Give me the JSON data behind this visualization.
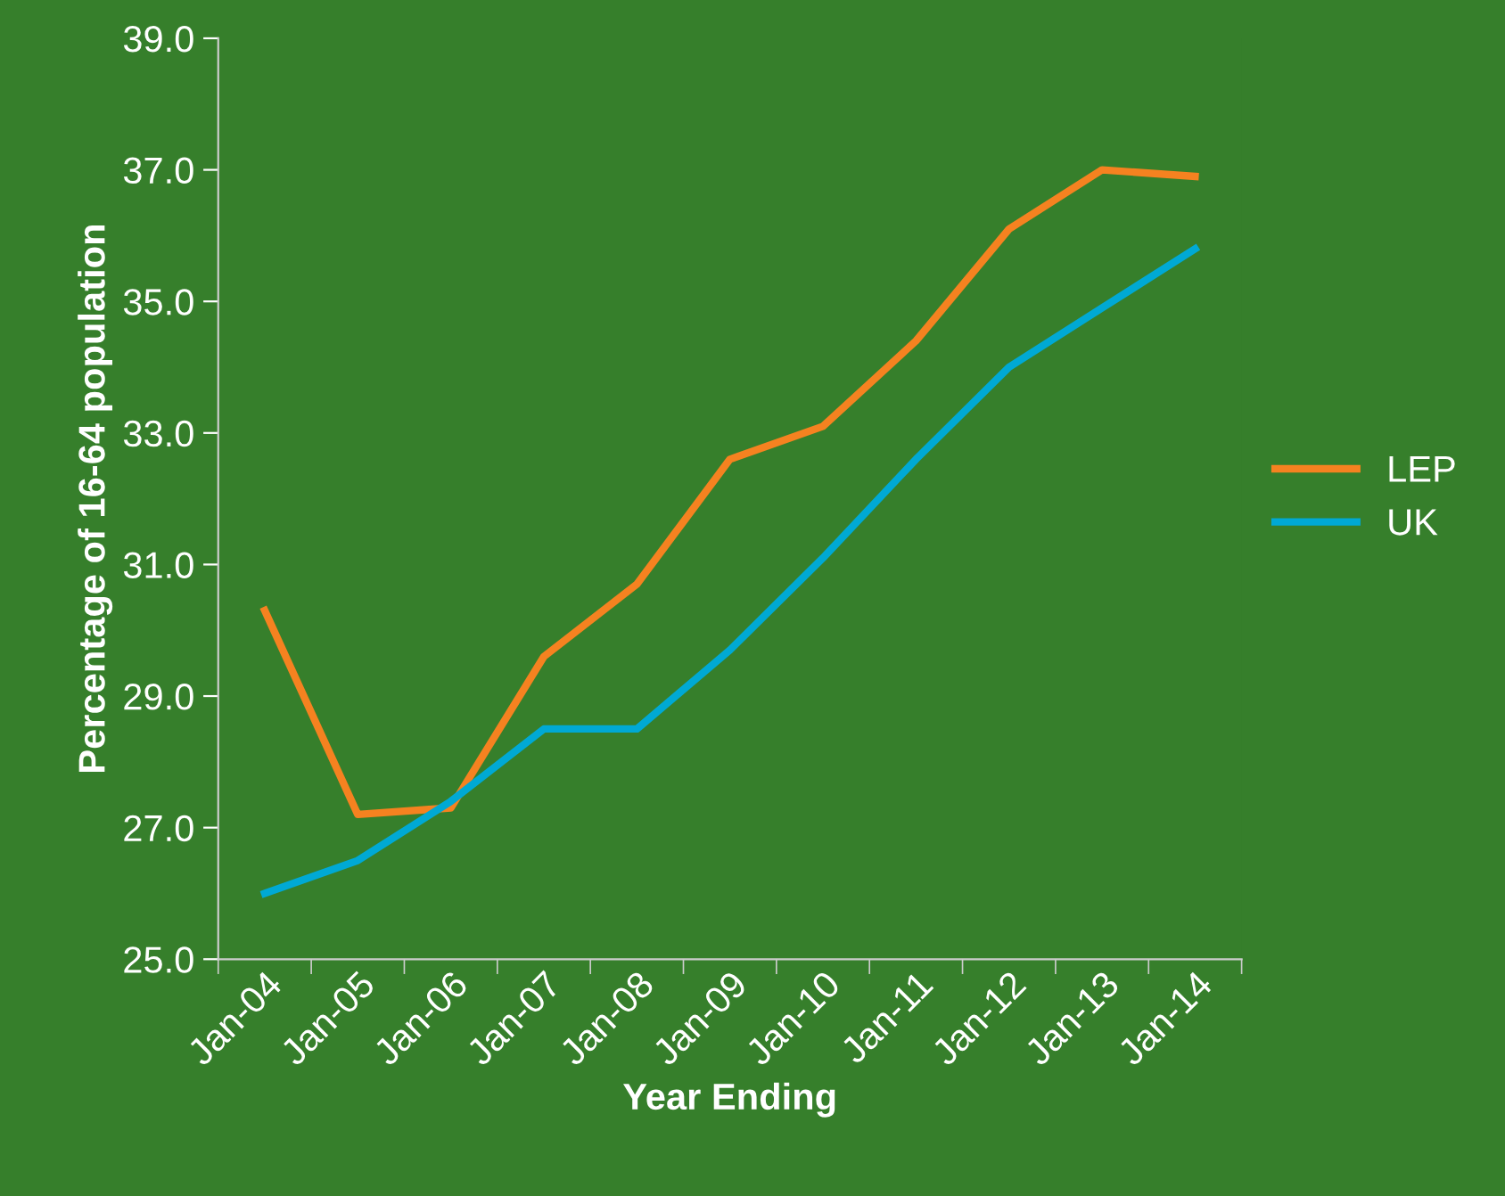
{
  "chart_data": {
    "type": "line",
    "xlabel": "Year Ending",
    "ylabel": "Percentage of 16-64 population",
    "categories": [
      "Jan-04",
      "Jan-05",
      "Jan-06",
      "Jan-07",
      "Jan-08",
      "Jan-09",
      "Jan-10",
      "Jan-11",
      "Jan-12",
      "Jan-13",
      "Jan-14"
    ],
    "series": [
      {
        "name": "LEP",
        "color": "#f58220",
        "values": [
          30.3,
          27.2,
          27.3,
          29.6,
          30.7,
          32.6,
          33.1,
          34.4,
          36.1,
          37.0,
          36.9
        ]
      },
      {
        "name": "UK",
        "color": "#00a9d4",
        "values": [
          26.0,
          26.5,
          27.4,
          28.5,
          28.5,
          29.7,
          31.1,
          32.6,
          34.0,
          34.9,
          35.8
        ]
      }
    ],
    "ylim": [
      25,
      39
    ],
    "yticks": [
      {
        "value": 25,
        "label": "25.0"
      },
      {
        "value": 27,
        "label": "27.0"
      },
      {
        "value": 29,
        "label": "29.0"
      },
      {
        "value": 31,
        "label": "31.0"
      },
      {
        "value": 33,
        "label": "33.0"
      },
      {
        "value": 35,
        "label": "35.0"
      },
      {
        "value": 37,
        "label": "37.0"
      },
      {
        "value": 39,
        "label": "39.0"
      }
    ],
    "grid": false,
    "legend": "right",
    "marker": "none",
    "line_style": "solid"
  }
}
